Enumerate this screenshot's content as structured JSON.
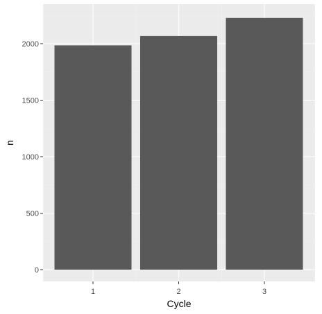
{
  "chart_data": {
    "type": "bar",
    "categories": [
      "1",
      "2",
      "3"
    ],
    "values": [
      1985,
      2068,
      2228
    ],
    "title": "",
    "xlabel": "Cycle",
    "ylabel": "n",
    "ylim": [
      0,
      2339
    ],
    "yticks": [
      0,
      500,
      1000,
      1500,
      2000
    ],
    "ytick_labels": [
      "0",
      "500",
      "1000",
      "1500",
      "2000"
    ],
    "grid": true,
    "colors": {
      "panel_background": "#ebebeb",
      "grid_major": "#ffffff",
      "grid_minor": "#f2f2f2",
      "bar_fill": "#595959",
      "tick_text": "#4d4d4d",
      "tick_mark": "#333333"
    }
  }
}
